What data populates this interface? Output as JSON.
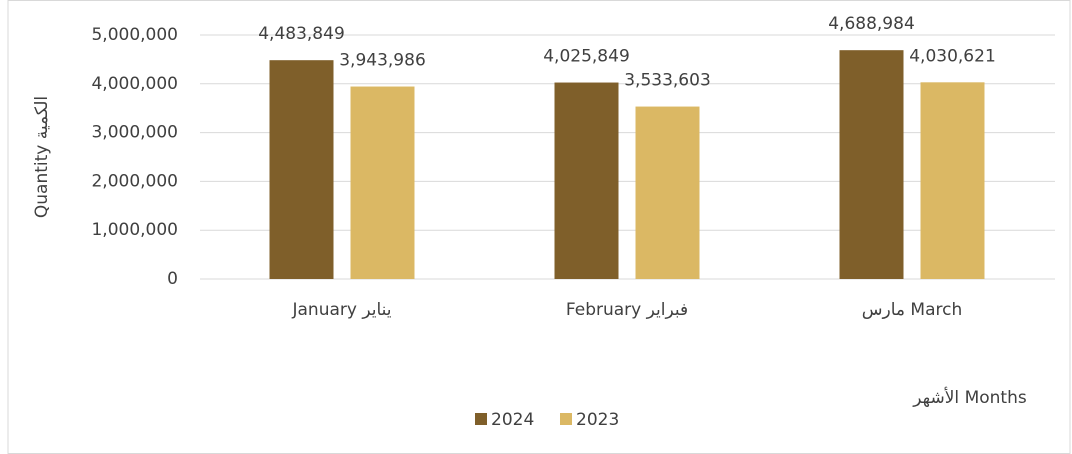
{
  "chart_data": {
    "type": "bar",
    "categories": [
      "January يناير",
      "February فبراير",
      "مارس March"
    ],
    "series": [
      {
        "name": "2024",
        "color": "#7f5f2a",
        "values": [
          4483849,
          4025849,
          4688984
        ],
        "value_labels": [
          "4,483,849",
          "4,025,849",
          "4,688,984"
        ]
      },
      {
        "name": "2023",
        "color": "#dbb864",
        "values": [
          3943986,
          3533603,
          4030621
        ],
        "value_labels": [
          "3,943,986",
          "3,533,603",
          "4,030,621"
        ]
      }
    ],
    "ylim": [
      0,
      5000000
    ],
    "yticks": [
      {
        "value": 0,
        "label": "0"
      },
      {
        "value": 1000000,
        "label": "1,000,000"
      },
      {
        "value": 2000000,
        "label": "2,000,000"
      },
      {
        "value": 3000000,
        "label": "3,000,000"
      },
      {
        "value": 4000000,
        "label": "4,000,000"
      },
      {
        "value": 5000000,
        "label": "5,000,000"
      }
    ],
    "ylabel": "Quantity الكمية",
    "xlabel": "الأشهر Months",
    "grid": true,
    "legend": "bottom"
  }
}
